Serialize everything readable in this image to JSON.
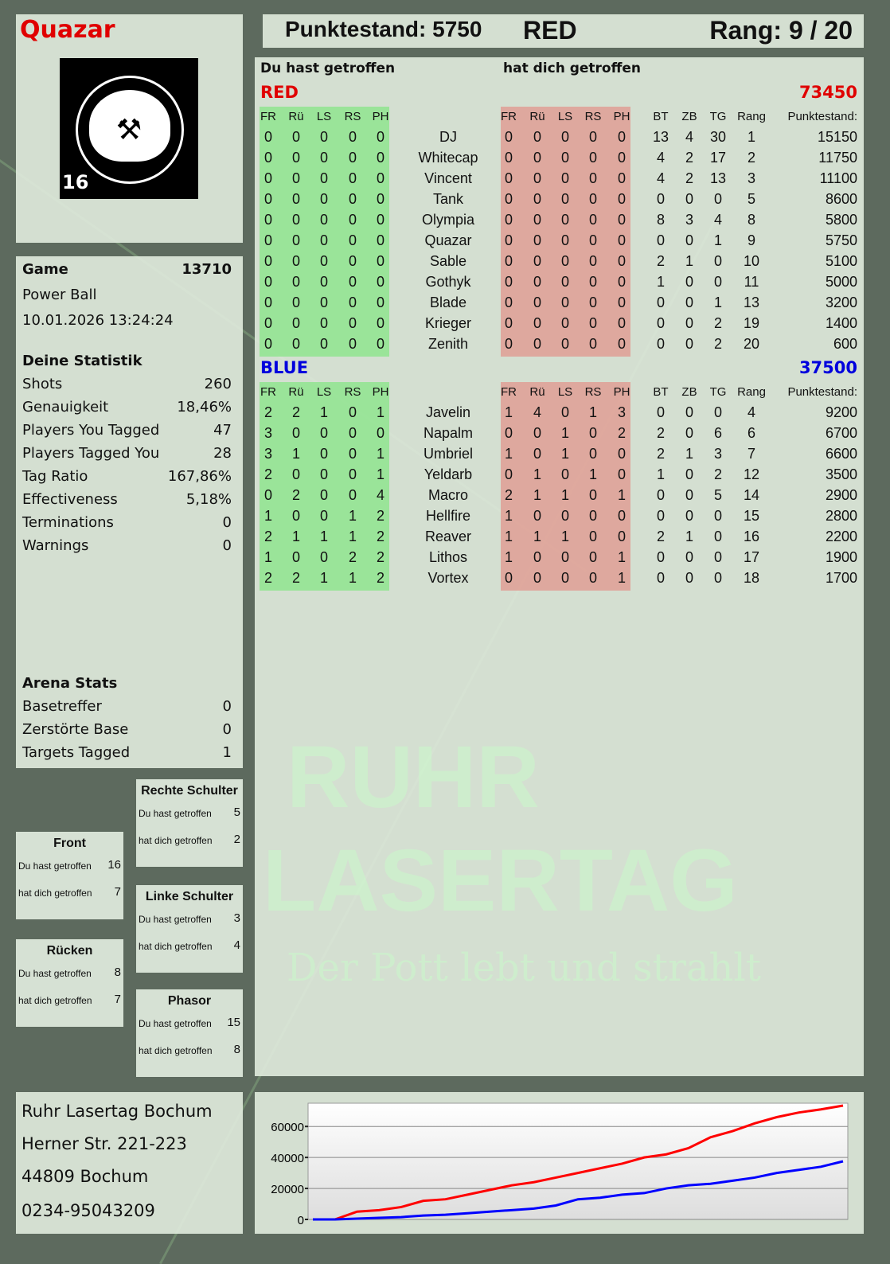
{
  "player": {
    "name": "Quazar",
    "logo_text": "RUHR LASERTAG",
    "logo_badge": "16"
  },
  "header": {
    "score_label": "Punktestand: 5750",
    "team": "RED",
    "rank_label": "Rang: 9 / 20"
  },
  "game": {
    "label": "Game",
    "id": "13710",
    "mode": "Power Ball",
    "datetime": "10.01.2026 13:24:24"
  },
  "stats": {
    "title": "Deine Statistik",
    "items": [
      {
        "label": "Shots",
        "value": "260"
      },
      {
        "label": "Genauigkeit",
        "value": "18,46%"
      },
      {
        "label": "Players You Tagged",
        "value": "47"
      },
      {
        "label": "Players Tagged You",
        "value": "28"
      },
      {
        "label": "Tag Ratio",
        "value": "167,86%"
      },
      {
        "label": "Effectiveness",
        "value": "5,18%"
      },
      {
        "label": "Terminations",
        "value": "0"
      },
      {
        "label": "Warnings",
        "value": "0"
      }
    ]
  },
  "arena": {
    "title": "Arena Stats",
    "items": [
      {
        "label": "Basetreffer",
        "value": "0"
      },
      {
        "label": "Zerstörte Base",
        "value": "0"
      },
      {
        "label": "Targets Tagged",
        "value": "1"
      }
    ]
  },
  "zones": [
    {
      "title": "Rechte Schulter",
      "hit_label": "Du hast getroffen",
      "hit": "5",
      "got_label": "hat dich getroffen",
      "got": "2"
    },
    {
      "title": "Front",
      "hit_label": "Du hast getroffen",
      "hit": "16",
      "got_label": "hat dich getroffen",
      "got": "7"
    },
    {
      "title": "Linke Schulter",
      "hit_label": "Du hast getroffen",
      "hit": "3",
      "got_label": "hat dich getroffen",
      "got": "4"
    },
    {
      "title": "Rücken",
      "hit_label": "Du hast getroffen",
      "hit": "8",
      "got_label": "hat dich getroffen",
      "got": "7"
    },
    {
      "title": "Phasor",
      "hit_label": "Du hast getroffen",
      "hit": "15",
      "got_label": "hat dich getroffen",
      "got": "8"
    }
  ],
  "address": [
    "Ruhr Lasertag Bochum",
    "Herner Str. 221-223",
    "44809 Bochum",
    "0234-95043209"
  ],
  "table": {
    "left_title": "Du hast getroffen",
    "right_title": "hat dich getroffen",
    "headers": [
      "FR",
      "Rü",
      "LS",
      "RS",
      "PH",
      "FR",
      "Rü",
      "LS",
      "RS",
      "PH",
      "BT",
      "ZB",
      "TG",
      "Rang",
      "Punktestand:"
    ],
    "teams": [
      {
        "name": "RED",
        "score": "73450",
        "color": "#e00000",
        "rows": [
          [
            "0",
            "0",
            "0",
            "0",
            "0",
            "DJ",
            "0",
            "0",
            "0",
            "0",
            "0",
            "13",
            "4",
            "30",
            "1",
            "15150"
          ],
          [
            "0",
            "0",
            "0",
            "0",
            "0",
            "Whitecap",
            "0",
            "0",
            "0",
            "0",
            "0",
            "4",
            "2",
            "17",
            "2",
            "11750"
          ],
          [
            "0",
            "0",
            "0",
            "0",
            "0",
            "Vincent",
            "0",
            "0",
            "0",
            "0",
            "0",
            "4",
            "2",
            "13",
            "3",
            "11100"
          ],
          [
            "0",
            "0",
            "0",
            "0",
            "0",
            "Tank",
            "0",
            "0",
            "0",
            "0",
            "0",
            "0",
            "0",
            "0",
            "5",
            "8600"
          ],
          [
            "0",
            "0",
            "0",
            "0",
            "0",
            "Olympia",
            "0",
            "0",
            "0",
            "0",
            "0",
            "8",
            "3",
            "4",
            "8",
            "5800"
          ],
          [
            "0",
            "0",
            "0",
            "0",
            "0",
            "Quazar",
            "0",
            "0",
            "0",
            "0",
            "0",
            "0",
            "0",
            "1",
            "9",
            "5750"
          ],
          [
            "0",
            "0",
            "0",
            "0",
            "0",
            "Sable",
            "0",
            "0",
            "0",
            "0",
            "0",
            "2",
            "1",
            "0",
            "10",
            "5100"
          ],
          [
            "0",
            "0",
            "0",
            "0",
            "0",
            "Gothyk",
            "0",
            "0",
            "0",
            "0",
            "0",
            "1",
            "0",
            "0",
            "11",
            "5000"
          ],
          [
            "0",
            "0",
            "0",
            "0",
            "0",
            "Blade",
            "0",
            "0",
            "0",
            "0",
            "0",
            "0",
            "0",
            "1",
            "13",
            "3200"
          ],
          [
            "0",
            "0",
            "0",
            "0",
            "0",
            "Krieger",
            "0",
            "0",
            "0",
            "0",
            "0",
            "0",
            "0",
            "2",
            "19",
            "1400"
          ],
          [
            "0",
            "0",
            "0",
            "0",
            "0",
            "Zenith",
            "0",
            "0",
            "0",
            "0",
            "0",
            "0",
            "0",
            "2",
            "20",
            "600"
          ]
        ]
      },
      {
        "name": "BLUE",
        "score": "37500",
        "color": "#0000dd",
        "rows": [
          [
            "2",
            "2",
            "1",
            "0",
            "1",
            "Javelin",
            "1",
            "4",
            "0",
            "1",
            "3",
            "0",
            "0",
            "0",
            "4",
            "9200"
          ],
          [
            "3",
            "0",
            "0",
            "0",
            "0",
            "Napalm",
            "0",
            "0",
            "1",
            "0",
            "2",
            "2",
            "0",
            "6",
            "6",
            "6700"
          ],
          [
            "3",
            "1",
            "0",
            "0",
            "1",
            "Umbriel",
            "1",
            "0",
            "1",
            "0",
            "0",
            "2",
            "1",
            "3",
            "7",
            "6600"
          ],
          [
            "2",
            "0",
            "0",
            "0",
            "1",
            "Yeldarb",
            "0",
            "1",
            "0",
            "1",
            "0",
            "1",
            "0",
            "2",
            "12",
            "3500"
          ],
          [
            "0",
            "2",
            "0",
            "0",
            "4",
            "Macro",
            "2",
            "1",
            "1",
            "0",
            "1",
            "0",
            "0",
            "5",
            "14",
            "2900"
          ],
          [
            "1",
            "0",
            "0",
            "1",
            "2",
            "Hellfire",
            "1",
            "0",
            "0",
            "0",
            "0",
            "0",
            "0",
            "0",
            "15",
            "2800"
          ],
          [
            "2",
            "1",
            "1",
            "1",
            "2",
            "Reaver",
            "1",
            "1",
            "1",
            "0",
            "0",
            "2",
            "1",
            "0",
            "16",
            "2200"
          ],
          [
            "1",
            "0",
            "0",
            "2",
            "2",
            "Lithos",
            "1",
            "0",
            "0",
            "0",
            "1",
            "0",
            "0",
            "0",
            "17",
            "1900"
          ],
          [
            "2",
            "2",
            "1",
            "1",
            "2",
            "Vortex",
            "0",
            "0",
            "0",
            "0",
            "1",
            "0",
            "0",
            "0",
            "18",
            "1700"
          ]
        ]
      }
    ]
  },
  "watermark": {
    "line1": "RUHR",
    "line2": "LASERTAG",
    "slogan": "Der Pott lebt und strahlt"
  },
  "chart_data": {
    "type": "line",
    "ylim": [
      0,
      75000
    ],
    "yticks": [
      "0",
      "20000",
      "40000",
      "60000"
    ],
    "grid": true,
    "series": [
      {
        "color": "#ff0000",
        "values": [
          0,
          0,
          5000,
          6000,
          8000,
          12000,
          13000,
          16000,
          19000,
          22000,
          24000,
          27000,
          30000,
          33000,
          36000,
          40000,
          42000,
          46000,
          53000,
          57000,
          62000,
          66000,
          69000,
          71000,
          73450
        ]
      },
      {
        "color": "#0000ff",
        "values": [
          0,
          0,
          500,
          1000,
          1500,
          2500,
          3000,
          4000,
          5000,
          6000,
          7000,
          9000,
          13000,
          14000,
          16000,
          17000,
          20000,
          22000,
          23000,
          25000,
          27000,
          30000,
          32000,
          34000,
          37500
        ]
      }
    ]
  }
}
